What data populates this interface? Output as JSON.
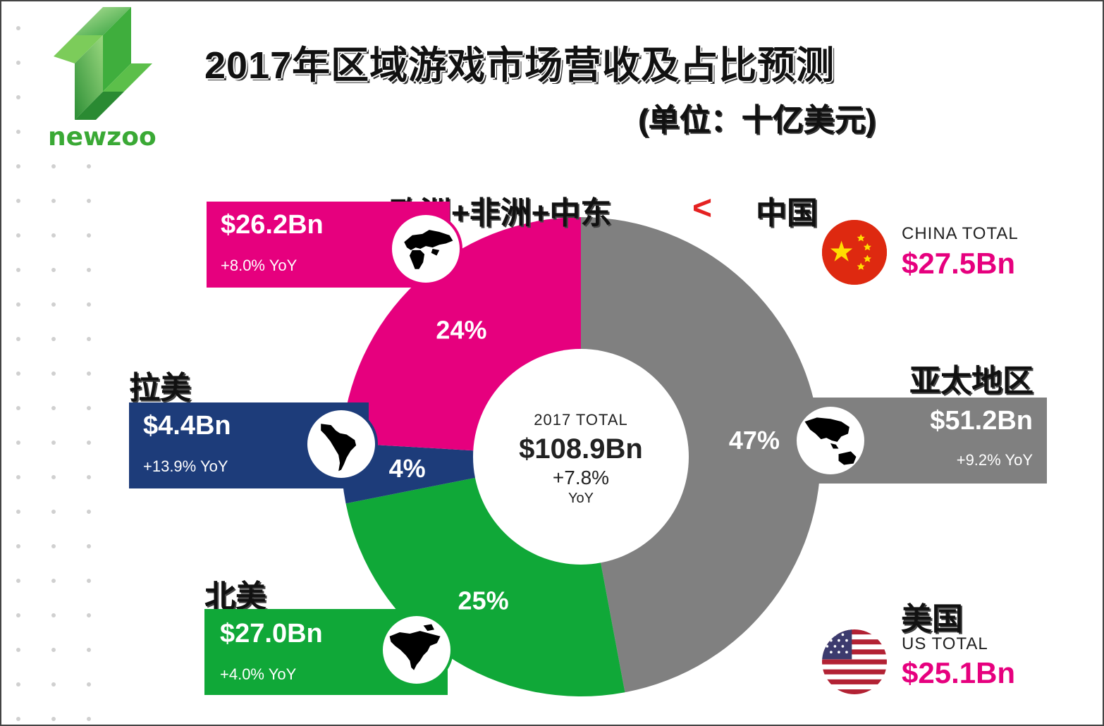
{
  "title": "2017年区域游戏市场营收及占比预测",
  "subtitle": "(单位：十亿美元)",
  "logo": {
    "text": "newzoo",
    "color": "#3aa935"
  },
  "comparison": {
    "left": "欧洲+非洲+中东",
    "symbol": "<",
    "right": "中国"
  },
  "center": {
    "label": "2017 TOTAL",
    "value": "$108.9Bn",
    "growth": "+7.8%",
    "growth_unit": "YoY"
  },
  "regions": {
    "emea": {
      "name": "欧洲+非洲+中东",
      "value": "$26.2Bn",
      "yoy": "+8.0% YoY",
      "pct": "24%",
      "color": "#e6007e",
      "icon": "europe-africa-map-icon"
    },
    "latam": {
      "name": "拉美",
      "value": "$4.4Bn",
      "yoy": "+13.9% YoY",
      "pct": "4%",
      "color": "#1d3c7a",
      "icon": "south-america-map-icon"
    },
    "na": {
      "name": "北美",
      "value": "$27.0Bn",
      "yoy": "+4.0% YoY",
      "pct": "25%",
      "color": "#10a838",
      "icon": "north-america-map-icon"
    },
    "apac": {
      "name": "亚太地区",
      "value": "$51.2Bn",
      "yoy": "+9.2% YoY",
      "pct": "47%",
      "color": "#808080",
      "icon": "asia-pacific-map-icon"
    }
  },
  "china": {
    "label": "CHINA TOTAL",
    "value": "$27.5Bn",
    "name": "中国",
    "icon": "china-flag-icon"
  },
  "us": {
    "label": "US TOTAL",
    "value": "$25.1Bn",
    "name": "美国",
    "icon": "us-flag-icon"
  },
  "chart_data": {
    "type": "pie",
    "title": "2017年区域游戏市场营收及占比预测",
    "subtitle": "(单位：十亿美元)",
    "categories": [
      "亚太地区",
      "北美",
      "拉美",
      "欧洲+非洲+中东"
    ],
    "values": [
      51.2,
      27.0,
      4.4,
      26.2
    ],
    "percent_labels": [
      "47%",
      "25%",
      "4%",
      "24%"
    ],
    "colors": [
      "#808080",
      "#10a838",
      "#1d3c7a",
      "#e6007e"
    ],
    "total": 108.9,
    "donut": true
  }
}
